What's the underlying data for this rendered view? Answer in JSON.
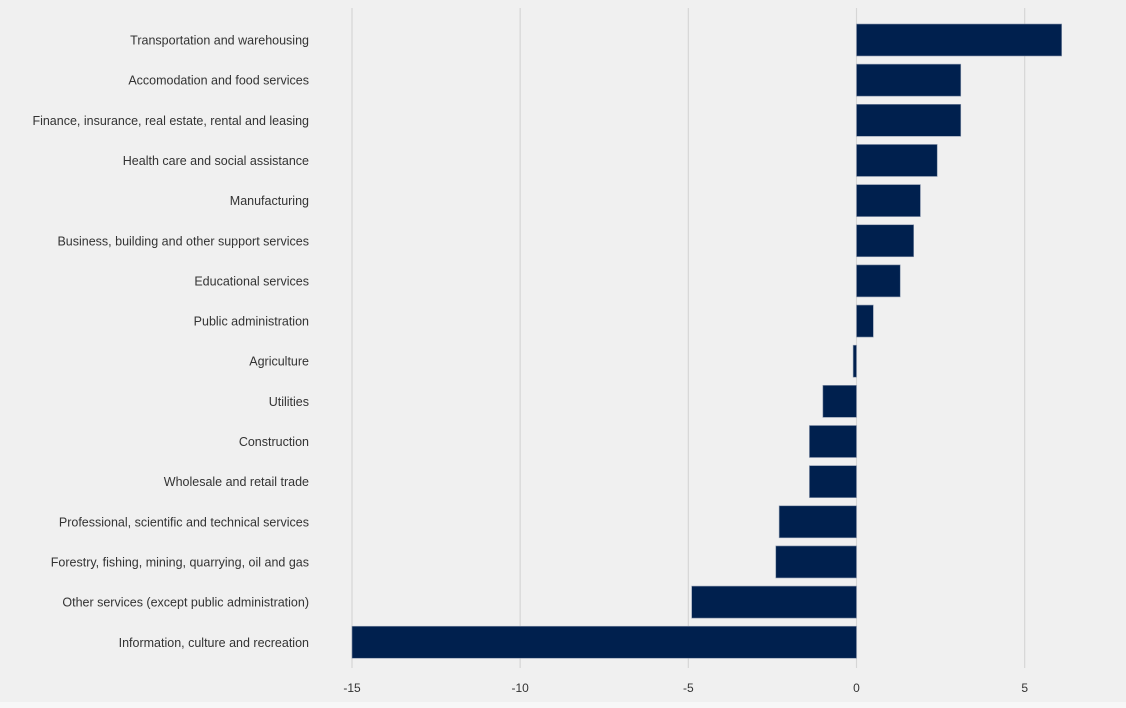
{
  "chart_data": {
    "type": "bar",
    "orientation": "horizontal",
    "title": "",
    "xlabel": "",
    "ylabel": "",
    "categories": [
      "Transportation and warehousing",
      "Accomodation and food services",
      "Finance, insurance, real estate, rental and leasing",
      "Health care and social assistance",
      "Manufacturing",
      "Business, building and other support services",
      "Educational services",
      "Public administration",
      "Agriculture",
      "Utilities",
      "Construction",
      "Wholesale and retail trade",
      "Professional, scientific and technical services",
      "Forestry, fishing, mining, quarrying, oil and gas",
      "Other services (except public administration)",
      "Information, culture and recreation"
    ],
    "values": [
      6.1,
      3.1,
      3.1,
      2.4,
      1.9,
      1.7,
      1.3,
      0.5,
      -0.1,
      -1.0,
      -1.4,
      -1.4,
      -2.3,
      -2.4,
      -4.9,
      -15.0
    ],
    "xlim": [
      -15,
      8
    ],
    "xticks": [
      -15,
      -10,
      -5,
      0,
      5
    ],
    "xtick_labels": [
      "-15",
      "-10",
      "-5",
      "0",
      "5"
    ],
    "grid": "vertical",
    "legend": "none",
    "bar_color": "#00204e"
  }
}
